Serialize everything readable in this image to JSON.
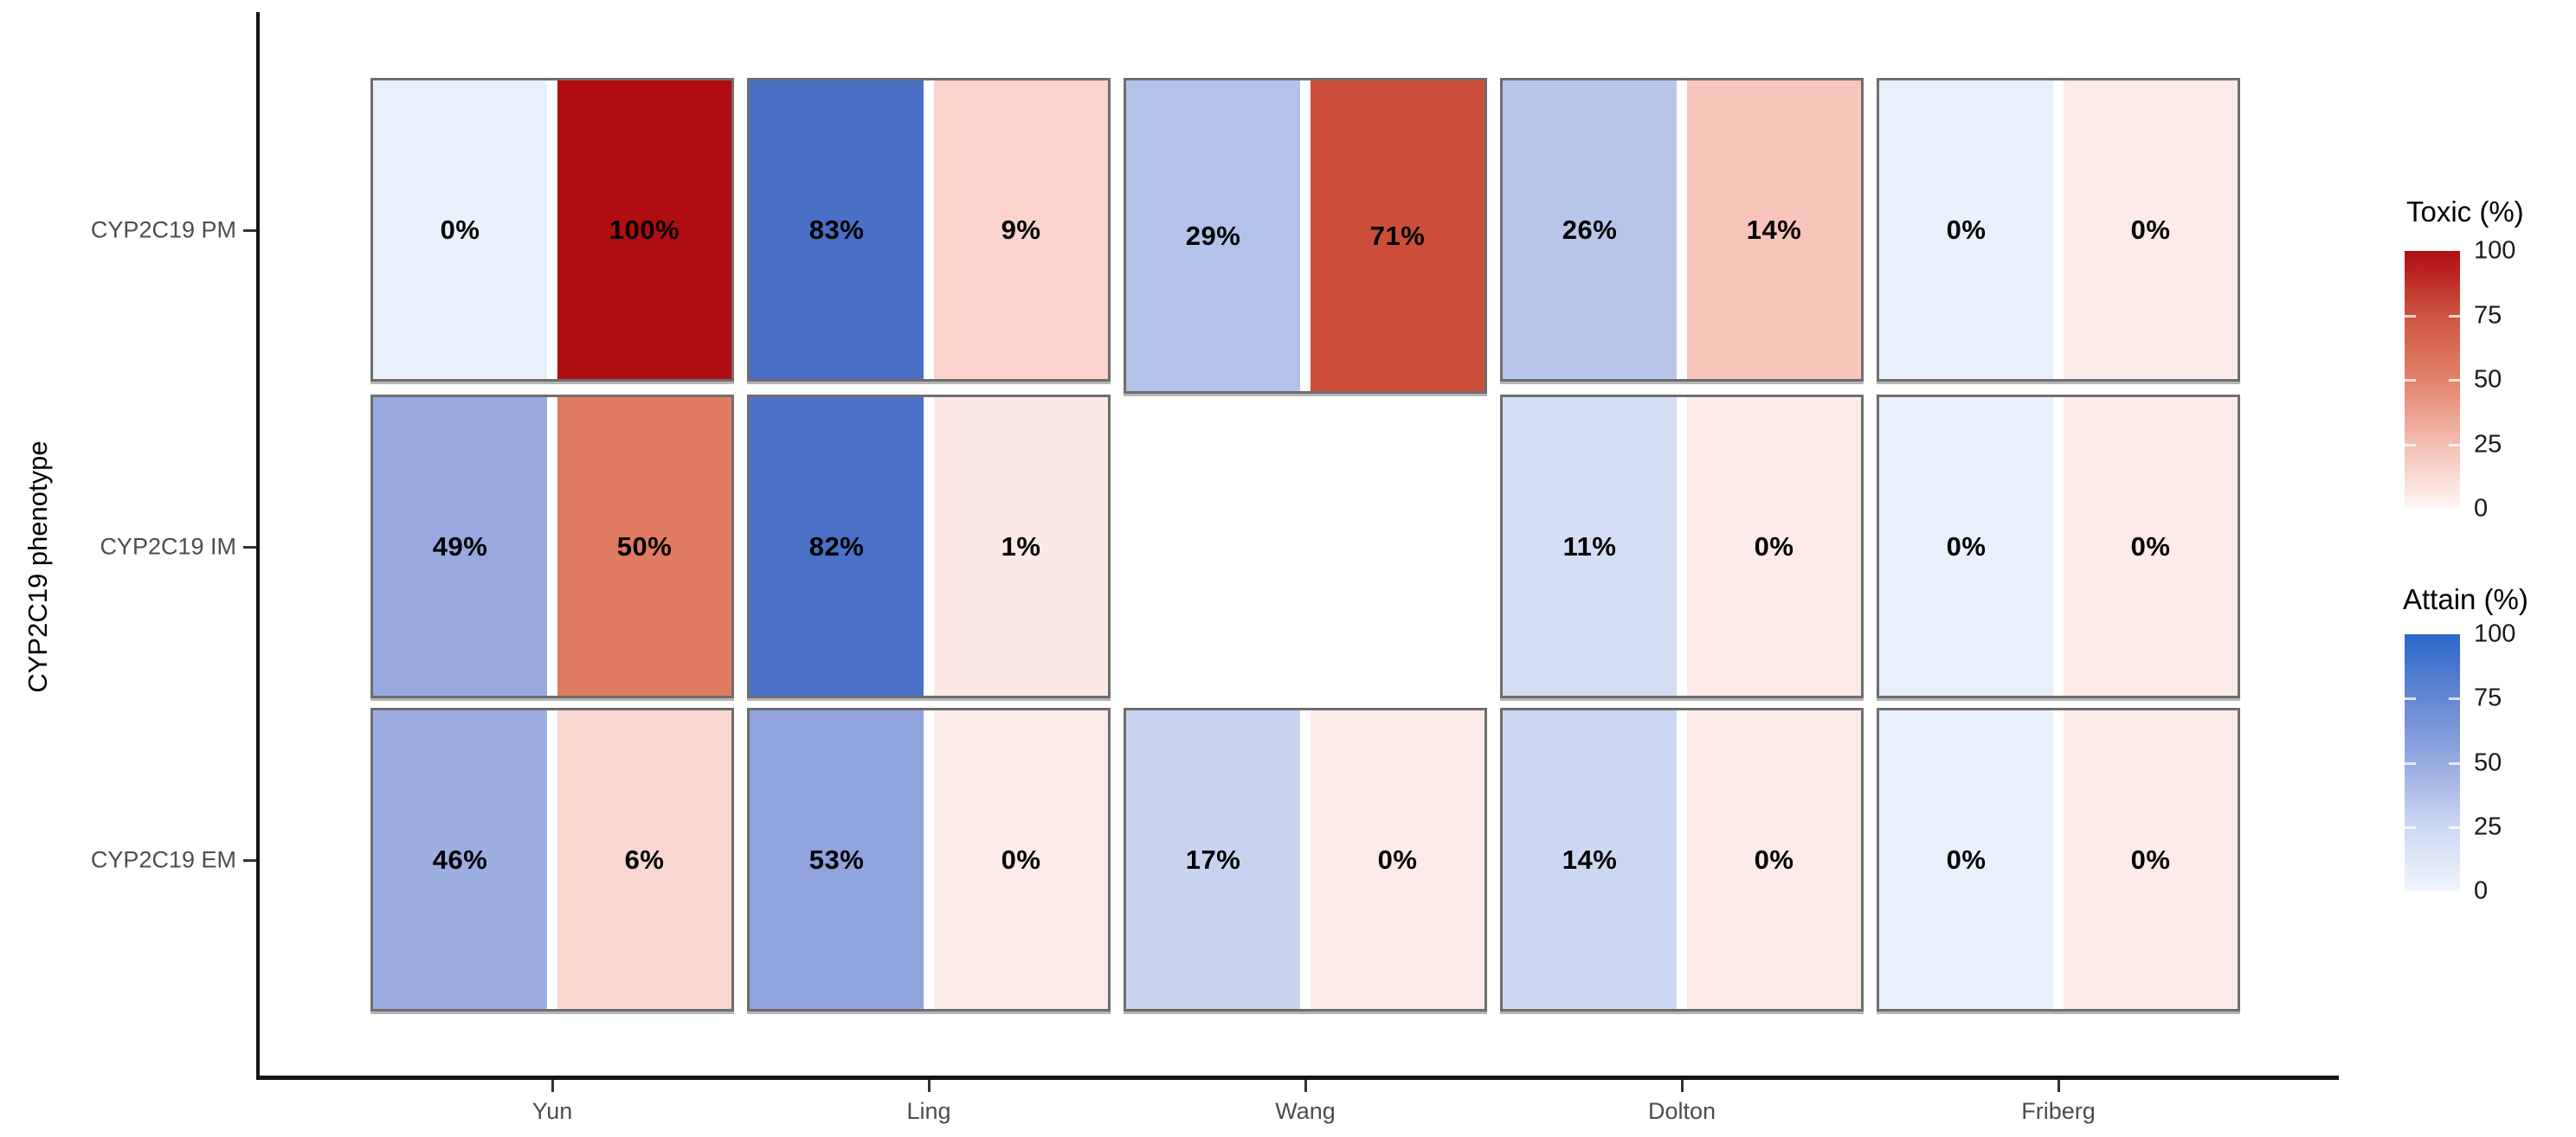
{
  "chart_data": {
    "type": "heatmap",
    "title": "",
    "xlabel": "",
    "ylabel": "CYP2C19 phenotype",
    "x_categories": [
      "Yun",
      "Ling",
      "Wang",
      "Dolton",
      "Friberg"
    ],
    "y_categories": [
      "CYP2C19 PM",
      "CYP2C19 IM",
      "CYP2C19 EM"
    ],
    "grid": false,
    "legend_position": "right",
    "series": [
      {
        "name": "Attain (%)",
        "rows": [
          [
            0,
            83,
            29,
            26,
            0
          ],
          [
            49,
            82,
            null,
            11,
            0
          ],
          [
            46,
            53,
            17,
            14,
            0
          ]
        ]
      },
      {
        "name": "Toxic (%)",
        "rows": [
          [
            100,
            9,
            71,
            14,
            0
          ],
          [
            50,
            1,
            null,
            0,
            0
          ],
          [
            6,
            0,
            0,
            0,
            0
          ]
        ]
      }
    ],
    "cells": [
      {
        "row": 0,
        "col": 0,
        "attain_label": "0%",
        "toxic_label": "100%",
        "attain_color": "#e8f1fb",
        "toxic_color": "#b00d12",
        "tall": false
      },
      {
        "row": 0,
        "col": 1,
        "attain_label": "83%",
        "toxic_label": "9%",
        "attain_color": "#4a6fc6",
        "toxic_color": "#fad3cc",
        "tall": false
      },
      {
        "row": 0,
        "col": 2,
        "attain_label": "29%",
        "toxic_label": "71%",
        "attain_color": "#b3c2e9",
        "toxic_color": "#cc4e39",
        "tall": true
      },
      {
        "row": 0,
        "col": 3,
        "attain_label": "26%",
        "toxic_label": "14%",
        "attain_color": "#b8c6ea",
        "toxic_color": "#f8c5ba",
        "tall": false
      },
      {
        "row": 0,
        "col": 4,
        "attain_label": "0%",
        "toxic_label": "0%",
        "attain_color": "#e8f1fb",
        "toxic_color": "#fcebe8",
        "tall": false
      },
      {
        "row": 1,
        "col": 0,
        "attain_label": "49%",
        "toxic_label": "50%",
        "attain_color": "#97a9e0",
        "toxic_color": "#e07b62",
        "tall": false
      },
      {
        "row": 1,
        "col": 1,
        "attain_label": "82%",
        "toxic_label": "1%",
        "attain_color": "#4b71c8",
        "toxic_color": "#fce8e5",
        "tall": false
      },
      {
        "row": 1,
        "col": 3,
        "attain_label": "11%",
        "toxic_label": "0%",
        "attain_color": "#d3ddf3",
        "toxic_color": "#fcebe8",
        "tall": false
      },
      {
        "row": 1,
        "col": 4,
        "attain_label": "0%",
        "toxic_label": "0%",
        "attain_color": "#e8f1fb",
        "toxic_color": "#fcebe8",
        "tall": false
      },
      {
        "row": 2,
        "col": 0,
        "attain_label": "46%",
        "toxic_label": "6%",
        "attain_color": "#9cade2",
        "toxic_color": "#f9d8d2",
        "tall": false
      },
      {
        "row": 2,
        "col": 1,
        "attain_label": "53%",
        "toxic_label": "0%",
        "attain_color": "#91a4de",
        "toxic_color": "#fcebe8",
        "tall": false
      },
      {
        "row": 2,
        "col": 2,
        "attain_label": "17%",
        "toxic_label": "0%",
        "attain_color": "#c8d4ef",
        "toxic_color": "#fcebe8",
        "tall": false
      },
      {
        "row": 2,
        "col": 3,
        "attain_label": "14%",
        "toxic_label": "0%",
        "attain_color": "#ccd8f1",
        "toxic_color": "#fcebe8",
        "tall": false
      },
      {
        "row": 2,
        "col": 4,
        "attain_label": "0%",
        "toxic_label": "0%",
        "attain_color": "#e8f1fb",
        "toxic_color": "#fcebe8",
        "tall": false
      }
    ],
    "legends": {
      "toxic": {
        "title": "Toxic (%)",
        "ticks": [
          "100",
          "75",
          "50",
          "25",
          "0"
        ],
        "range": [
          0,
          100
        ],
        "gradient": [
          "#b00d12",
          "#cd5340",
          "#e3836b",
          "#f4beb2",
          "#fff7f5"
        ]
      },
      "attain": {
        "title": "Attain (%)",
        "ticks": [
          "100",
          "75",
          "50",
          "25",
          "0"
        ],
        "range": [
          0,
          100
        ],
        "gradient": [
          "#2b67c9",
          "#6487d2",
          "#98aae1",
          "#ccd9f2",
          "#f1f6fd"
        ]
      }
    },
    "colors": {
      "attain_max": "#2b67c9",
      "toxic_max": "#b00d12",
      "cell_border": "#6e6e6e",
      "axis": "#141414",
      "tick_label": "#4d4d4d"
    }
  }
}
